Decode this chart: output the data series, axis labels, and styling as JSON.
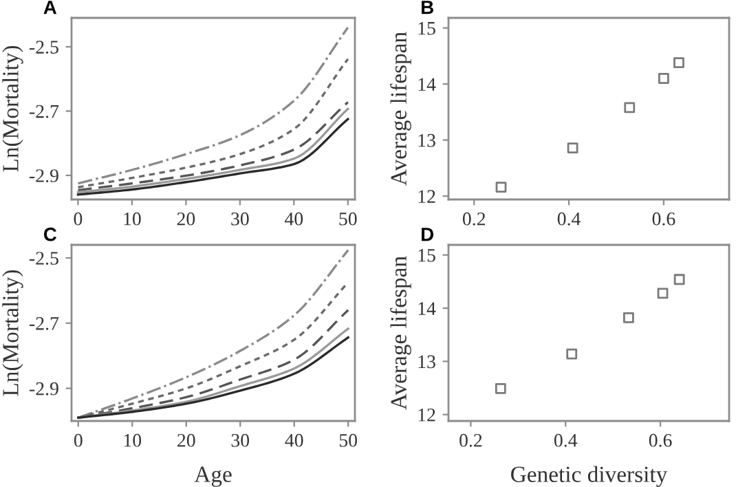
{
  "chart_data": [
    {
      "type": "line",
      "title": "A",
      "ylabel": "Ln(Mortality)",
      "x": [
        0,
        10,
        20,
        30,
        40,
        50
      ],
      "xlim": [
        -1.2,
        51.3
      ],
      "ylim": [
        -2.975,
        -2.41
      ],
      "xticks": [
        0,
        10,
        20,
        30,
        40,
        50
      ],
      "yticks": [
        -2.5,
        -2.7,
        -2.9
      ],
      "grid": false,
      "legend": false,
      "marker": "none",
      "series": [
        {
          "color": "#8a8a8a",
          "line_style": "dashdot",
          "values": [
            -2.925,
            -2.883,
            -2.834,
            -2.775,
            -2.668,
            -2.44
          ]
        },
        {
          "color": "#6a6a6a",
          "line_style": "dotted",
          "values": [
            -2.937,
            -2.908,
            -2.876,
            -2.834,
            -2.756,
            -2.538
          ]
        },
        {
          "color": "#555555",
          "line_style": "dashed",
          "values": [
            -2.946,
            -2.925,
            -2.901,
            -2.869,
            -2.82,
            -2.672
          ]
        },
        {
          "color": "#9a9a9a",
          "line_style": "solid",
          "values": [
            -2.953,
            -2.935,
            -2.911,
            -2.883,
            -2.848,
            -2.693
          ]
        },
        {
          "color": "#2a2a2a",
          "line_style": "solid",
          "values": [
            -2.96,
            -2.944,
            -2.921,
            -2.894,
            -2.865,
            -2.725
          ]
        }
      ]
    },
    {
      "type": "scatter",
      "title": "B",
      "ylabel": "Average lifespan",
      "x": [
        0.257,
        0.408,
        0.528,
        0.6,
        0.632
      ],
      "xlim": [
        0.146,
        0.738
      ],
      "ylim": [
        11.94,
        15.18
      ],
      "xticks": [
        0.2,
        0.4,
        0.6
      ],
      "yticks": [
        12,
        13,
        14,
        15
      ],
      "grid": false,
      "legend": false,
      "marker": "square",
      "series": [
        {
          "color": "#7a7a7a",
          "values": [
            12.16,
            12.86,
            13.58,
            14.1,
            14.38
          ]
        }
      ]
    },
    {
      "type": "line",
      "title": "C",
      "xlabel": "Age",
      "ylabel": "Ln(Mortality)",
      "x": [
        0,
        10,
        20,
        30,
        40,
        50
      ],
      "xlim": [
        -1.25,
        51.25
      ],
      "ylim": [
        -3.0,
        -2.46
      ],
      "xticks": [
        0,
        10,
        20,
        30,
        40,
        50
      ],
      "yticks": [
        -2.5,
        -2.7,
        -2.9
      ],
      "grid": false,
      "legend": false,
      "marker": "none",
      "series": [
        {
          "color": "#8a8a8a",
          "line_style": "dashdot",
          "values": [
            -2.99,
            -2.931,
            -2.866,
            -2.785,
            -2.676,
            -2.476
          ]
        },
        {
          "color": "#6a6a6a",
          "line_style": "dotted",
          "values": [
            -2.99,
            -2.947,
            -2.9,
            -2.832,
            -2.751,
            -2.575
          ]
        },
        {
          "color": "#555555",
          "line_style": "dashed",
          "values": [
            -2.99,
            -2.961,
            -2.927,
            -2.873,
            -2.812,
            -2.66
          ]
        },
        {
          "color": "#9a9a9a",
          "line_style": "solid",
          "values": [
            -2.99,
            -2.968,
            -2.941,
            -2.893,
            -2.839,
            -2.717
          ]
        },
        {
          "color": "#2a2a2a",
          "line_style": "solid",
          "values": [
            -2.99,
            -2.972,
            -2.947,
            -2.907,
            -2.855,
            -2.744
          ]
        }
      ]
    },
    {
      "type": "scatter",
      "title": "D",
      "xlabel": "Genetic diversity",
      "ylabel": "Average lifespan",
      "x": [
        0.263,
        0.413,
        0.533,
        0.605,
        0.64
      ],
      "xlim": [
        0.153,
        0.745
      ],
      "ylim": [
        11.88,
        15.19
      ],
      "xticks": [
        0.2,
        0.4,
        0.6
      ],
      "yticks": [
        12,
        13,
        14,
        15
      ],
      "grid": false,
      "legend": false,
      "marker": "square",
      "series": [
        {
          "color": "#7a7a7a",
          "values": [
            12.49,
            13.14,
            13.82,
            14.28,
            14.54
          ]
        }
      ]
    }
  ]
}
